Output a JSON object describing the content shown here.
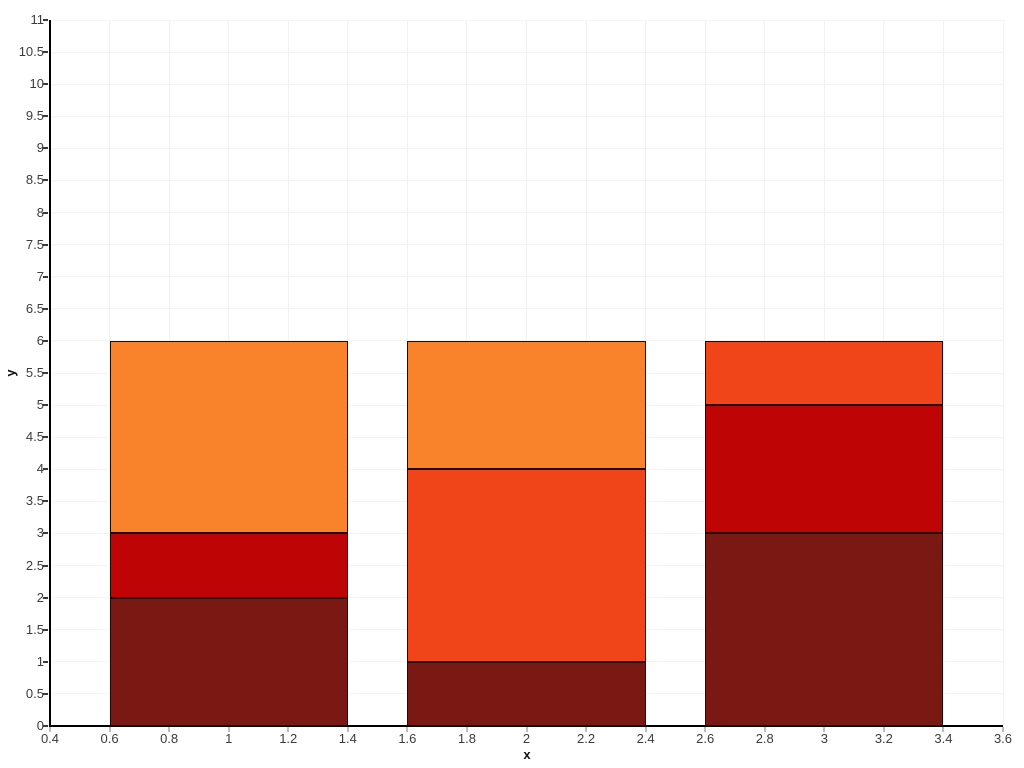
{
  "chart_data": {
    "type": "bar",
    "stacked": true,
    "title": "",
    "xlabel": "x",
    "ylabel": "y",
    "xlim": [
      0.4,
      3.6
    ],
    "ylim": [
      0,
      11
    ],
    "grid": true,
    "legend": null,
    "x_ticks": [
      0.4,
      0.6,
      0.8,
      1,
      1.2,
      1.4,
      1.6,
      1.8,
      2,
      2.2,
      2.4,
      2.6,
      2.8,
      3,
      3.2,
      3.4,
      3.6
    ],
    "x_tick_labels": [
      "0.4",
      "0.6",
      "0.8",
      "1",
      "1.2",
      "1.4",
      "1.6",
      "1.8",
      "2",
      "2.2",
      "2.4",
      "2.6",
      "2.8",
      "3",
      "3.2",
      "3.4",
      "3.6"
    ],
    "y_ticks": [
      0,
      0.5,
      1,
      1.5,
      2,
      2.5,
      3,
      3.5,
      4,
      4.5,
      5,
      5.5,
      6,
      6.5,
      7,
      7.5,
      8,
      8.5,
      9,
      9.5,
      10,
      10.5,
      11
    ],
    "y_tick_labels": [
      "0",
      "0.5",
      "1",
      "1.5",
      "2",
      "2.5",
      "3",
      "3.5",
      "4",
      "4.5",
      "5",
      "5.5",
      "6",
      "6.5",
      "7",
      "7.5",
      "8",
      "8.5",
      "9",
      "9.5",
      "10",
      "10.5",
      "11"
    ],
    "bar_width": 0.8,
    "bars": [
      {
        "x": 1,
        "total": 6,
        "segments": [
          {
            "from": 0,
            "to": 2,
            "value": 2,
            "color": "#7a1913"
          },
          {
            "from": 2,
            "to": 3,
            "value": 1,
            "color": "#be0404"
          },
          {
            "from": 3,
            "to": 6,
            "value": 3,
            "color": "#f8832a"
          }
        ]
      },
      {
        "x": 2,
        "total": 6,
        "segments": [
          {
            "from": 0,
            "to": 1,
            "value": 1,
            "color": "#7a1913"
          },
          {
            "from": 1,
            "to": 4,
            "value": 3,
            "color": "#f04518"
          },
          {
            "from": 4,
            "to": 6,
            "value": 2,
            "color": "#f8832a"
          }
        ]
      },
      {
        "x": 3,
        "total": 6,
        "segments": [
          {
            "from": 0,
            "to": 3,
            "value": 3,
            "color": "#7a1913"
          },
          {
            "from": 3,
            "to": 5,
            "value": 2,
            "color": "#be0404"
          },
          {
            "from": 5,
            "to": 6,
            "value": 1,
            "color": "#f04518"
          }
        ]
      }
    ],
    "colors": {
      "background": "#ffffff",
      "grid_vertical": "#f1f1f1",
      "grid_horizontal": "#f4f4f4",
      "axis_line": "#000000",
      "tick_label": "#3c3c3c",
      "axis_title": "#111111",
      "bar_border": "#200b03"
    }
  }
}
